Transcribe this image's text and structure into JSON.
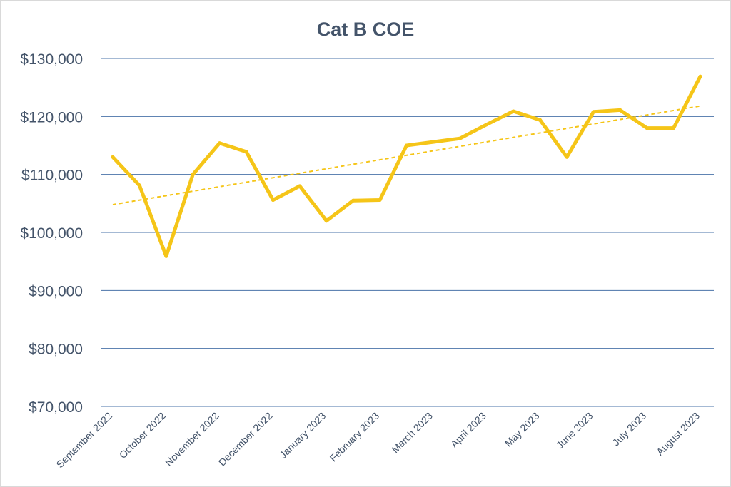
{
  "chart_data": {
    "type": "line",
    "title": "Cat B COE",
    "xlabel": "",
    "ylabel": "",
    "ylim": [
      70000,
      130000
    ],
    "yticks": [
      70000,
      80000,
      90000,
      100000,
      110000,
      120000,
      130000
    ],
    "ytick_labels": [
      "$70,000",
      "$80,000",
      "$90,000",
      "$100,000",
      "$110,000",
      "$120,000",
      "$130,000"
    ],
    "grid": true,
    "legend": "none",
    "x_tick_labels": [
      "September 2022",
      "October 2022",
      "November 2022",
      "December 2022",
      "January 2023",
      "February 2023",
      "March 2023",
      "April 2023",
      "May 2023",
      "June 2023",
      "July 2023",
      "August 2023"
    ],
    "x_tick_positions": [
      0,
      2,
      4,
      6,
      8,
      10,
      12,
      14,
      16,
      18,
      20,
      22
    ],
    "series": [
      {
        "name": "Cat B COE",
        "color": "#f5c518",
        "values": [
          113000,
          108100,
          95900,
          110000,
          115400,
          113900,
          105600,
          108000,
          102000,
          105500,
          105600,
          115000,
          115600,
          116200,
          118600,
          120900,
          119400,
          113000,
          120800,
          121100,
          118000,
          118000,
          126900
        ]
      },
      {
        "name": "Trend (linear)",
        "style": "dashed",
        "color": "#f5c518",
        "values": [
          104800,
          121800
        ]
      }
    ]
  }
}
